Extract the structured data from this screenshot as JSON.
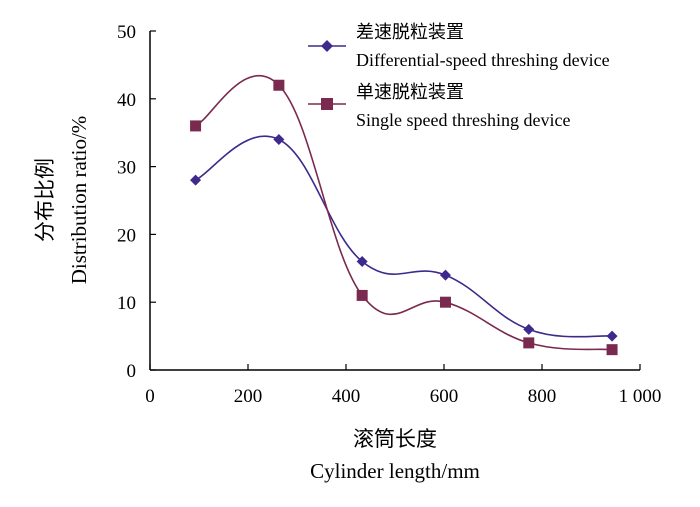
{
  "chart_data": {
    "type": "line",
    "title": "",
    "xlabel_cn": "滚筒长度",
    "xlabel_en": "Cylinder length/mm",
    "ylabel_cn": "分布比例",
    "ylabel_en": "Distribution ratio/%",
    "xlim": [
      0,
      1000
    ],
    "ylim": [
      0,
      50
    ],
    "x_ticks": [
      0,
      200,
      400,
      600,
      800,
      1000
    ],
    "x_tick_labels": [
      "0",
      "200",
      "400",
      "600",
      "800",
      "1 000"
    ],
    "y_ticks": [
      0,
      10,
      20,
      30,
      40,
      50
    ],
    "y_tick_labels": [
      "0",
      "10",
      "20",
      "30",
      "40",
      "50"
    ],
    "grid": false,
    "legend_position": "top-right",
    "x": [
      93,
      263,
      433,
      603,
      773,
      943
    ],
    "series": [
      {
        "name_cn": "差速脱粒装置",
        "name_en": "Differential-speed threshing device",
        "marker": "diamond",
        "color": "#3d2a8c",
        "values": [
          28,
          34,
          16,
          14,
          6,
          5
        ]
      },
      {
        "name_cn": "单速脱粒装置",
        "name_en": "Single speed threshing device",
        "marker": "square",
        "color": "#7a2a4e",
        "values": [
          36,
          42,
          11,
          10,
          4,
          3
        ]
      }
    ]
  }
}
